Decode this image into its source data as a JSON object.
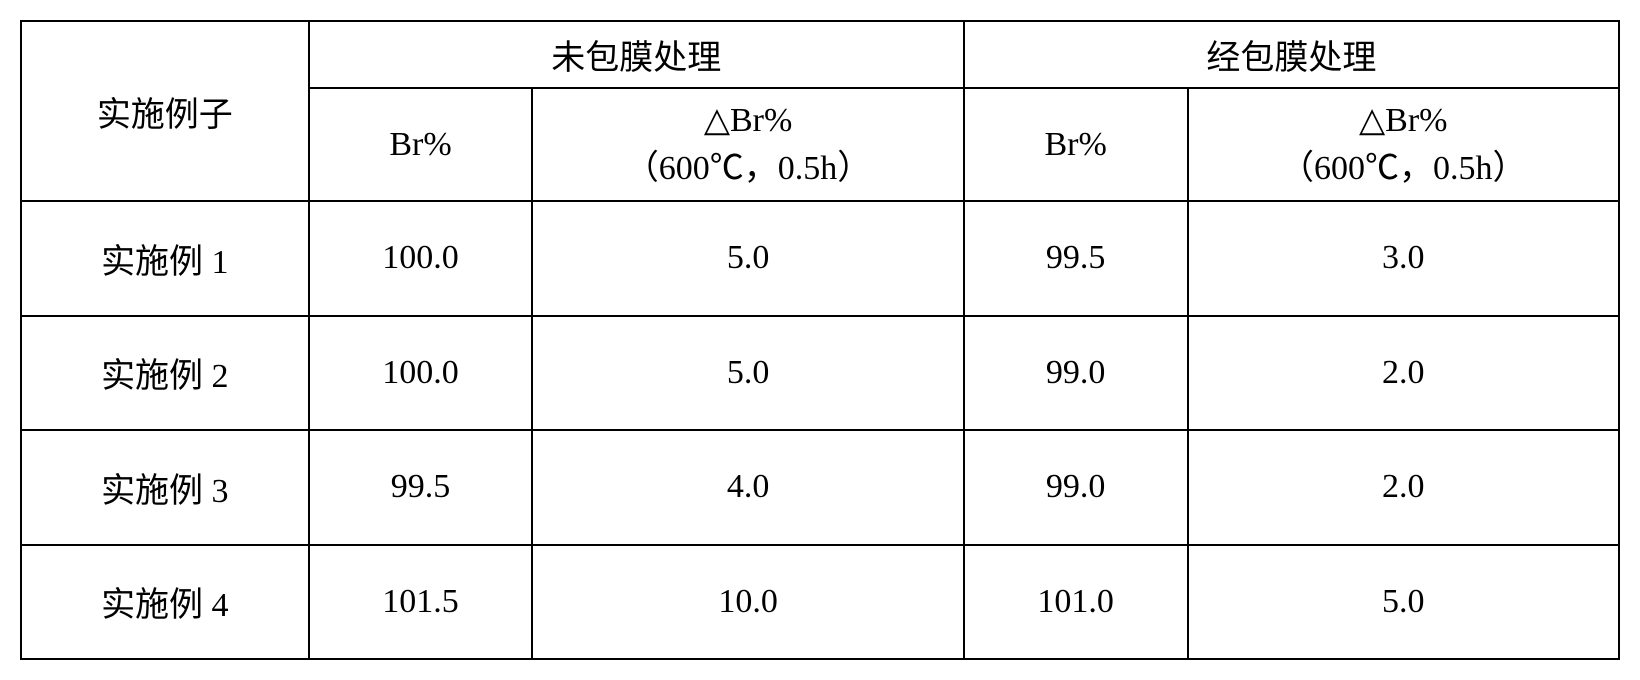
{
  "table": {
    "headers": {
      "row_label": "实施例子",
      "group1": "未包膜处理",
      "group2": "经包膜处理",
      "br_col": "Br%",
      "delta_br_line1": "△Br%",
      "delta_br_line2": "（600℃，0.5h）"
    },
    "rows": [
      {
        "label": "实施例 1",
        "g1_br": "100.0",
        "g1_delta": "5.0",
        "g2_br": "99.5",
        "g2_delta": "3.0"
      },
      {
        "label": "实施例 2",
        "g1_br": "100.0",
        "g1_delta": "5.0",
        "g2_br": "99.0",
        "g2_delta": "2.0"
      },
      {
        "label": "实施例 3",
        "g1_br": "99.5",
        "g1_delta": "4.0",
        "g2_br": "99.0",
        "g2_delta": "2.0"
      },
      {
        "label": "实施例 4",
        "g1_br": "101.5",
        "g1_delta": "10.0",
        "g2_br": "101.0",
        "g2_delta": "5.0"
      }
    ],
    "styling": {
      "border_color": "#000000",
      "border_width": 2,
      "background_color": "#ffffff",
      "text_color": "#000000",
      "font_size": 34,
      "font_family": "SimSun",
      "column_widths_percent": [
        18,
        14,
        27,
        14,
        27
      ],
      "header_row_heights": [
        1,
        2
      ],
      "data_row_count": 4
    }
  }
}
